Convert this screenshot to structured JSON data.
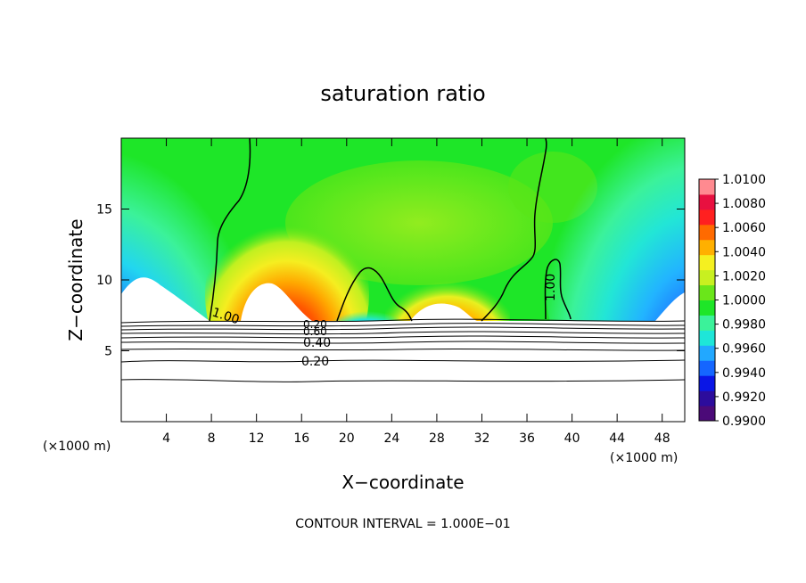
{
  "chart_data": {
    "type": "heatmap",
    "title": "saturation ratio",
    "xlabel": "X−coordinate",
    "ylabel": "Z−coordinate",
    "x_unit": "(×1000 m)",
    "x_unit_right": "(×1000 m)",
    "xlim": [
      0,
      50
    ],
    "ylim": [
      0,
      20
    ],
    "x_ticks": [
      "4",
      "8",
      "12",
      "16",
      "20",
      "24",
      "28",
      "32",
      "36",
      "40",
      "44",
      "48"
    ],
    "x_tick_values": [
      4,
      8,
      12,
      16,
      20,
      24,
      28,
      32,
      36,
      40,
      44,
      48
    ],
    "y_ticks": [
      "5",
      "10",
      "15"
    ],
    "y_tick_values": [
      5,
      10,
      15
    ],
    "colorbar": {
      "min": 0.99,
      "max": 1.01,
      "labels": [
        "1.0100",
        "1.0080",
        "1.0060",
        "1.0040",
        "1.0020",
        "1.0000",
        "0.9980",
        "0.9960",
        "0.9940",
        "0.9920",
        "0.9900"
      ],
      "colors": [
        "#4b0a78",
        "#2c0c9c",
        "#0a16e6",
        "#1566ff",
        "#22a8ff",
        "#1ee6d8",
        "#3bf29a",
        "#1ee628",
        "#6ae61a",
        "#c8f020",
        "#f5f020",
        "#ffb000",
        "#ff6a00",
        "#ff2020",
        "#e81040",
        "#ff8a90"
      ]
    },
    "contour_labels": [
      "1.00",
      "1.00",
      "0.20",
      "0.60",
      "0.40",
      "0.20"
    ],
    "footer": "CONTOUR INTERVAL = 1.000E−01",
    "grid": false
  }
}
